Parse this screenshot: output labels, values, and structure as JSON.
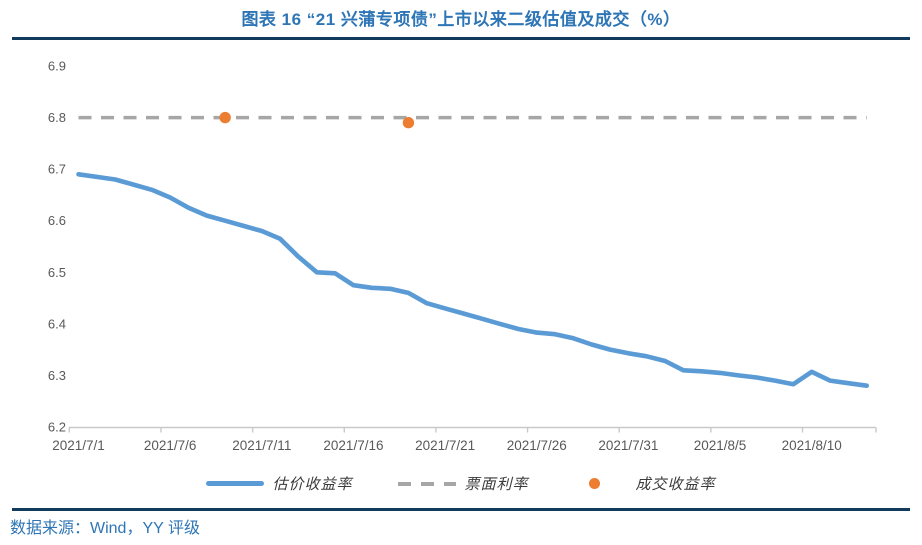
{
  "header": {
    "title": "图表 16 “21 兴蒲专项债”上市以来二级估值及成交（%）"
  },
  "footer": {
    "source": "数据来源：Wind，YY 评级"
  },
  "colors": {
    "title_text": "#2E75B6",
    "rule": "#113A5D",
    "estimate_line": "#5B9BD5",
    "coupon_line": "#A6A6A6",
    "trade_dot": "#ED7D31",
    "axis_text": "#595959",
    "axis_line": "#C9C9C9",
    "source_text": "#2E75B6"
  },
  "chart_data": {
    "type": "line",
    "title": "图表 16 “21 兴蒲专项债”上市以来二级估值及成交（%）",
    "xlabel": "",
    "ylabel": "",
    "ylim": [
      6.2,
      6.9
    ],
    "y_ticks": [
      6.9,
      6.8,
      6.7,
      6.6,
      6.5,
      6.4,
      6.3,
      6.2
    ],
    "grid": false,
    "legend_position": "bottom",
    "x": [
      "2021/7/1",
      "2021/7/2",
      "2021/7/3",
      "2021/7/4",
      "2021/7/5",
      "2021/7/6",
      "2021/7/7",
      "2021/7/8",
      "2021/7/9",
      "2021/7/10",
      "2021/7/11",
      "2021/7/12",
      "2021/7/13",
      "2021/7/14",
      "2021/7/15",
      "2021/7/16",
      "2021/7/17",
      "2021/7/18",
      "2021/7/19",
      "2021/7/20",
      "2021/7/21",
      "2021/7/22",
      "2021/7/23",
      "2021/7/24",
      "2021/7/25",
      "2021/7/26",
      "2021/7/27",
      "2021/7/28",
      "2021/7/29",
      "2021/7/30",
      "2021/7/31",
      "2021/8/1",
      "2021/8/2",
      "2021/8/3",
      "2021/8/4",
      "2021/8/5",
      "2021/8/6",
      "2021/8/7",
      "2021/8/8",
      "2021/8/9",
      "2021/8/10",
      "2021/8/11",
      "2021/8/12",
      "2021/8/13"
    ],
    "x_tick_labels": [
      "2021/7/1",
      "2021/7/6",
      "2021/7/11",
      "2021/7/16",
      "2021/7/21",
      "2021/7/26",
      "2021/7/31",
      "2021/8/5",
      "2021/8/10"
    ],
    "x_tick_indices": [
      0,
      5,
      10,
      15,
      20,
      25,
      30,
      35,
      40
    ],
    "series": [
      {
        "name": "估价收益率",
        "type": "line",
        "color": "#5B9BD5",
        "values": [
          6.69,
          6.685,
          6.68,
          6.67,
          6.66,
          6.645,
          6.625,
          6.61,
          6.6,
          6.59,
          6.58,
          6.565,
          6.53,
          6.5,
          6.498,
          6.475,
          6.47,
          6.468,
          6.46,
          6.44,
          6.43,
          6.42,
          6.41,
          6.4,
          6.39,
          6.383,
          6.38,
          6.372,
          6.36,
          6.35,
          6.343,
          6.337,
          6.328,
          6.31,
          6.308,
          6.305,
          6.3,
          6.296,
          6.29,
          6.283,
          6.307,
          6.29,
          6.285,
          6.28
        ]
      },
      {
        "name": "票面利率",
        "type": "dashed_line",
        "color": "#A6A6A6",
        "value": 6.8
      },
      {
        "name": "成交收益率",
        "type": "scatter",
        "color": "#ED7D31",
        "points": [
          {
            "x": "2021/7/9",
            "y": 6.8
          },
          {
            "x": "2021/7/19",
            "y": 6.79
          }
        ]
      }
    ]
  }
}
